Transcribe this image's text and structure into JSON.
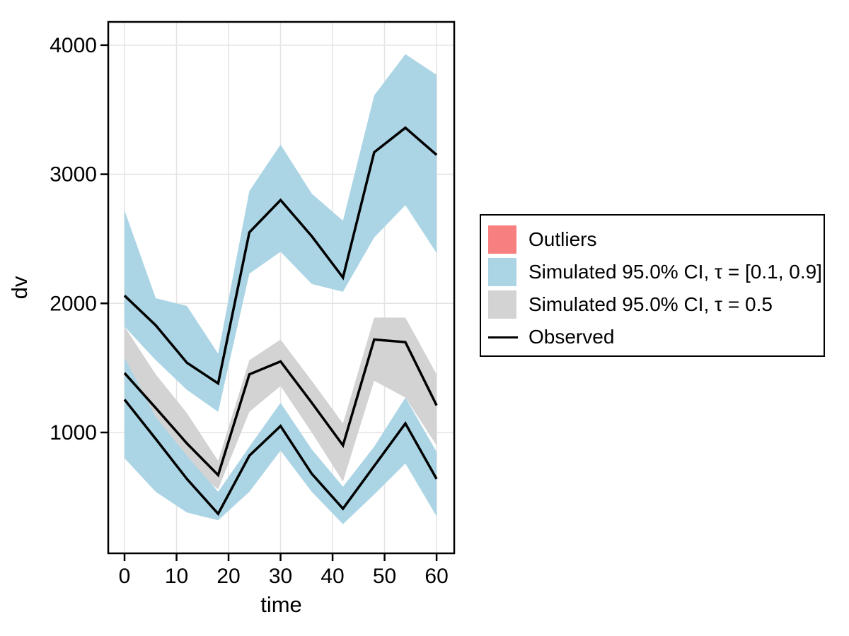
{
  "figure": {
    "background": "#ffffff"
  },
  "axis": {
    "xlabel": "time",
    "ylabel": "dv",
    "x_tick_labels": [
      "0",
      "10",
      "20",
      "30",
      "40",
      "50",
      "60"
    ],
    "y_tick_labels": [
      "1000",
      "2000",
      "3000",
      "4000"
    ],
    "grid_color": "#e4e4e4",
    "spine_color": "#000000"
  },
  "legend": {
    "items": [
      {
        "label": "Outliers",
        "swatch": "#f87f7f",
        "type": "box"
      },
      {
        "label": "Simulated 95.0% CI, τ = [0.1, 0.9]",
        "swatch": "#abd5e5",
        "type": "box"
      },
      {
        "label": "Simulated 95.0% CI, τ = 0.5",
        "swatch": "#d3d3d3",
        "type": "box"
      },
      {
        "label": "Observed",
        "swatch": "#000000",
        "type": "line"
      }
    ]
  },
  "chart_data": {
    "type": "line",
    "title": "",
    "xlabel": "time",
    "ylabel": "dv",
    "xlim": [
      -3.13,
      63.39
    ],
    "ylim": [
      64,
      4180
    ],
    "x_ticks": [
      0,
      10,
      20,
      30,
      40,
      50,
      60
    ],
    "y_ticks": [
      1000,
      2000,
      3000,
      4000
    ],
    "grid": true,
    "legend_position": "right",
    "x": [
      0,
      6,
      12,
      18,
      24,
      30,
      36,
      42,
      48,
      54,
      60
    ],
    "bands": [
      {
        "name": "Simulated 95.0% CI, τ = 0.5",
        "color": "#d3d3d3",
        "hi": [
          1820,
          1450,
          1150,
          780,
          1560,
          1720,
          1400,
          1070,
          1890,
          1890,
          1450
        ],
        "lo": [
          1320,
          1080,
          740,
          560,
          1160,
          1360,
          1000,
          620,
          1400,
          1270,
          900
        ]
      },
      {
        "name": "Simulated 95.0% CI upper band, τ = 0.9",
        "color": "#abd5e5",
        "hi": [
          2720,
          2040,
          1980,
          1610,
          2870,
          3230,
          2850,
          2640,
          3610,
          3930,
          3770
        ],
        "lo": [
          1820,
          1560,
          1330,
          1160,
          2230,
          2400,
          2150,
          2090,
          2510,
          2760,
          2390
        ]
      },
      {
        "name": "Simulated 95.0% CI lower band, τ = 0.1",
        "color": "#abd5e5",
        "hi": [
          1580,
          1120,
          820,
          540,
          890,
          1230,
          870,
          580,
          890,
          1270,
          850
        ],
        "lo": [
          800,
          540,
          380,
          320,
          540,
          860,
          540,
          290,
          520,
          760,
          350
        ]
      }
    ],
    "series": [
      {
        "name": "Observed upper quantile",
        "color": "#000000",
        "values": [
          2060,
          1830,
          1540,
          1380,
          2550,
          2800,
          2520,
          2200,
          3170,
          3360,
          3150
        ]
      },
      {
        "name": "Observed median",
        "color": "#000000",
        "values": [
          1460,
          1190,
          915,
          670,
          1450,
          1550,
          1230,
          900,
          1720,
          1700,
          1210
        ]
      },
      {
        "name": "Observed lower quantile",
        "color": "#000000",
        "values": [
          1255,
          950,
          640,
          370,
          820,
          1050,
          680,
          410,
          740,
          1070,
          640
        ]
      }
    ],
    "outliers": {
      "name": "Outliers",
      "color": "#f87f7f",
      "points": []
    }
  }
}
